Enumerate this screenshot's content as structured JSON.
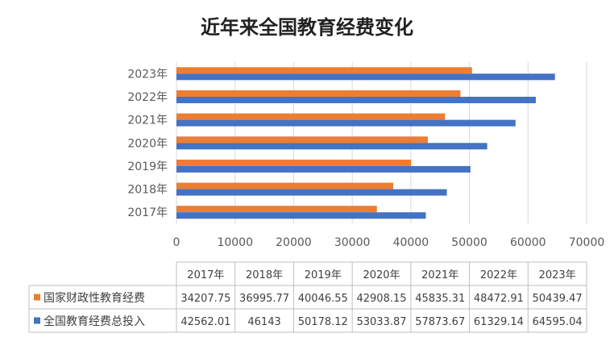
{
  "chart_data": {
    "type": "bar",
    "orientation": "horizontal",
    "title": "近年来全国教育经费变化",
    "categories": [
      "2017年",
      "2018年",
      "2019年",
      "2020年",
      "2021年",
      "2022年",
      "2023年"
    ],
    "series": [
      {
        "name": "国家财政性教育经费",
        "color": "#ED7D31",
        "values": [
          34207.75,
          36995.77,
          40046.55,
          42908.15,
          45835.31,
          48472.91,
          50439.47
        ],
        "table_values": [
          "34207.75",
          "36995.77",
          "40046.55",
          "42908.15",
          "45835.31",
          "48472.91",
          "50439.47"
        ]
      },
      {
        "name": "全国教育经费总投入",
        "color": "#4472C4",
        "values": [
          42562.01,
          46143,
          50178.12,
          53033.87,
          57873.67,
          61329.14,
          64595.04
        ],
        "table_values": [
          "42562.01",
          "46143",
          "50178.12",
          "53033.87",
          "57873.67",
          "61329.14",
          "64595.04"
        ]
      }
    ],
    "xlim": [
      0,
      70000
    ],
    "x_ticks": [
      "0",
      "10000",
      "20000",
      "30000",
      "40000",
      "50000",
      "60000",
      "70000"
    ],
    "grid": true,
    "data_table": true,
    "legend": "data-table"
  }
}
